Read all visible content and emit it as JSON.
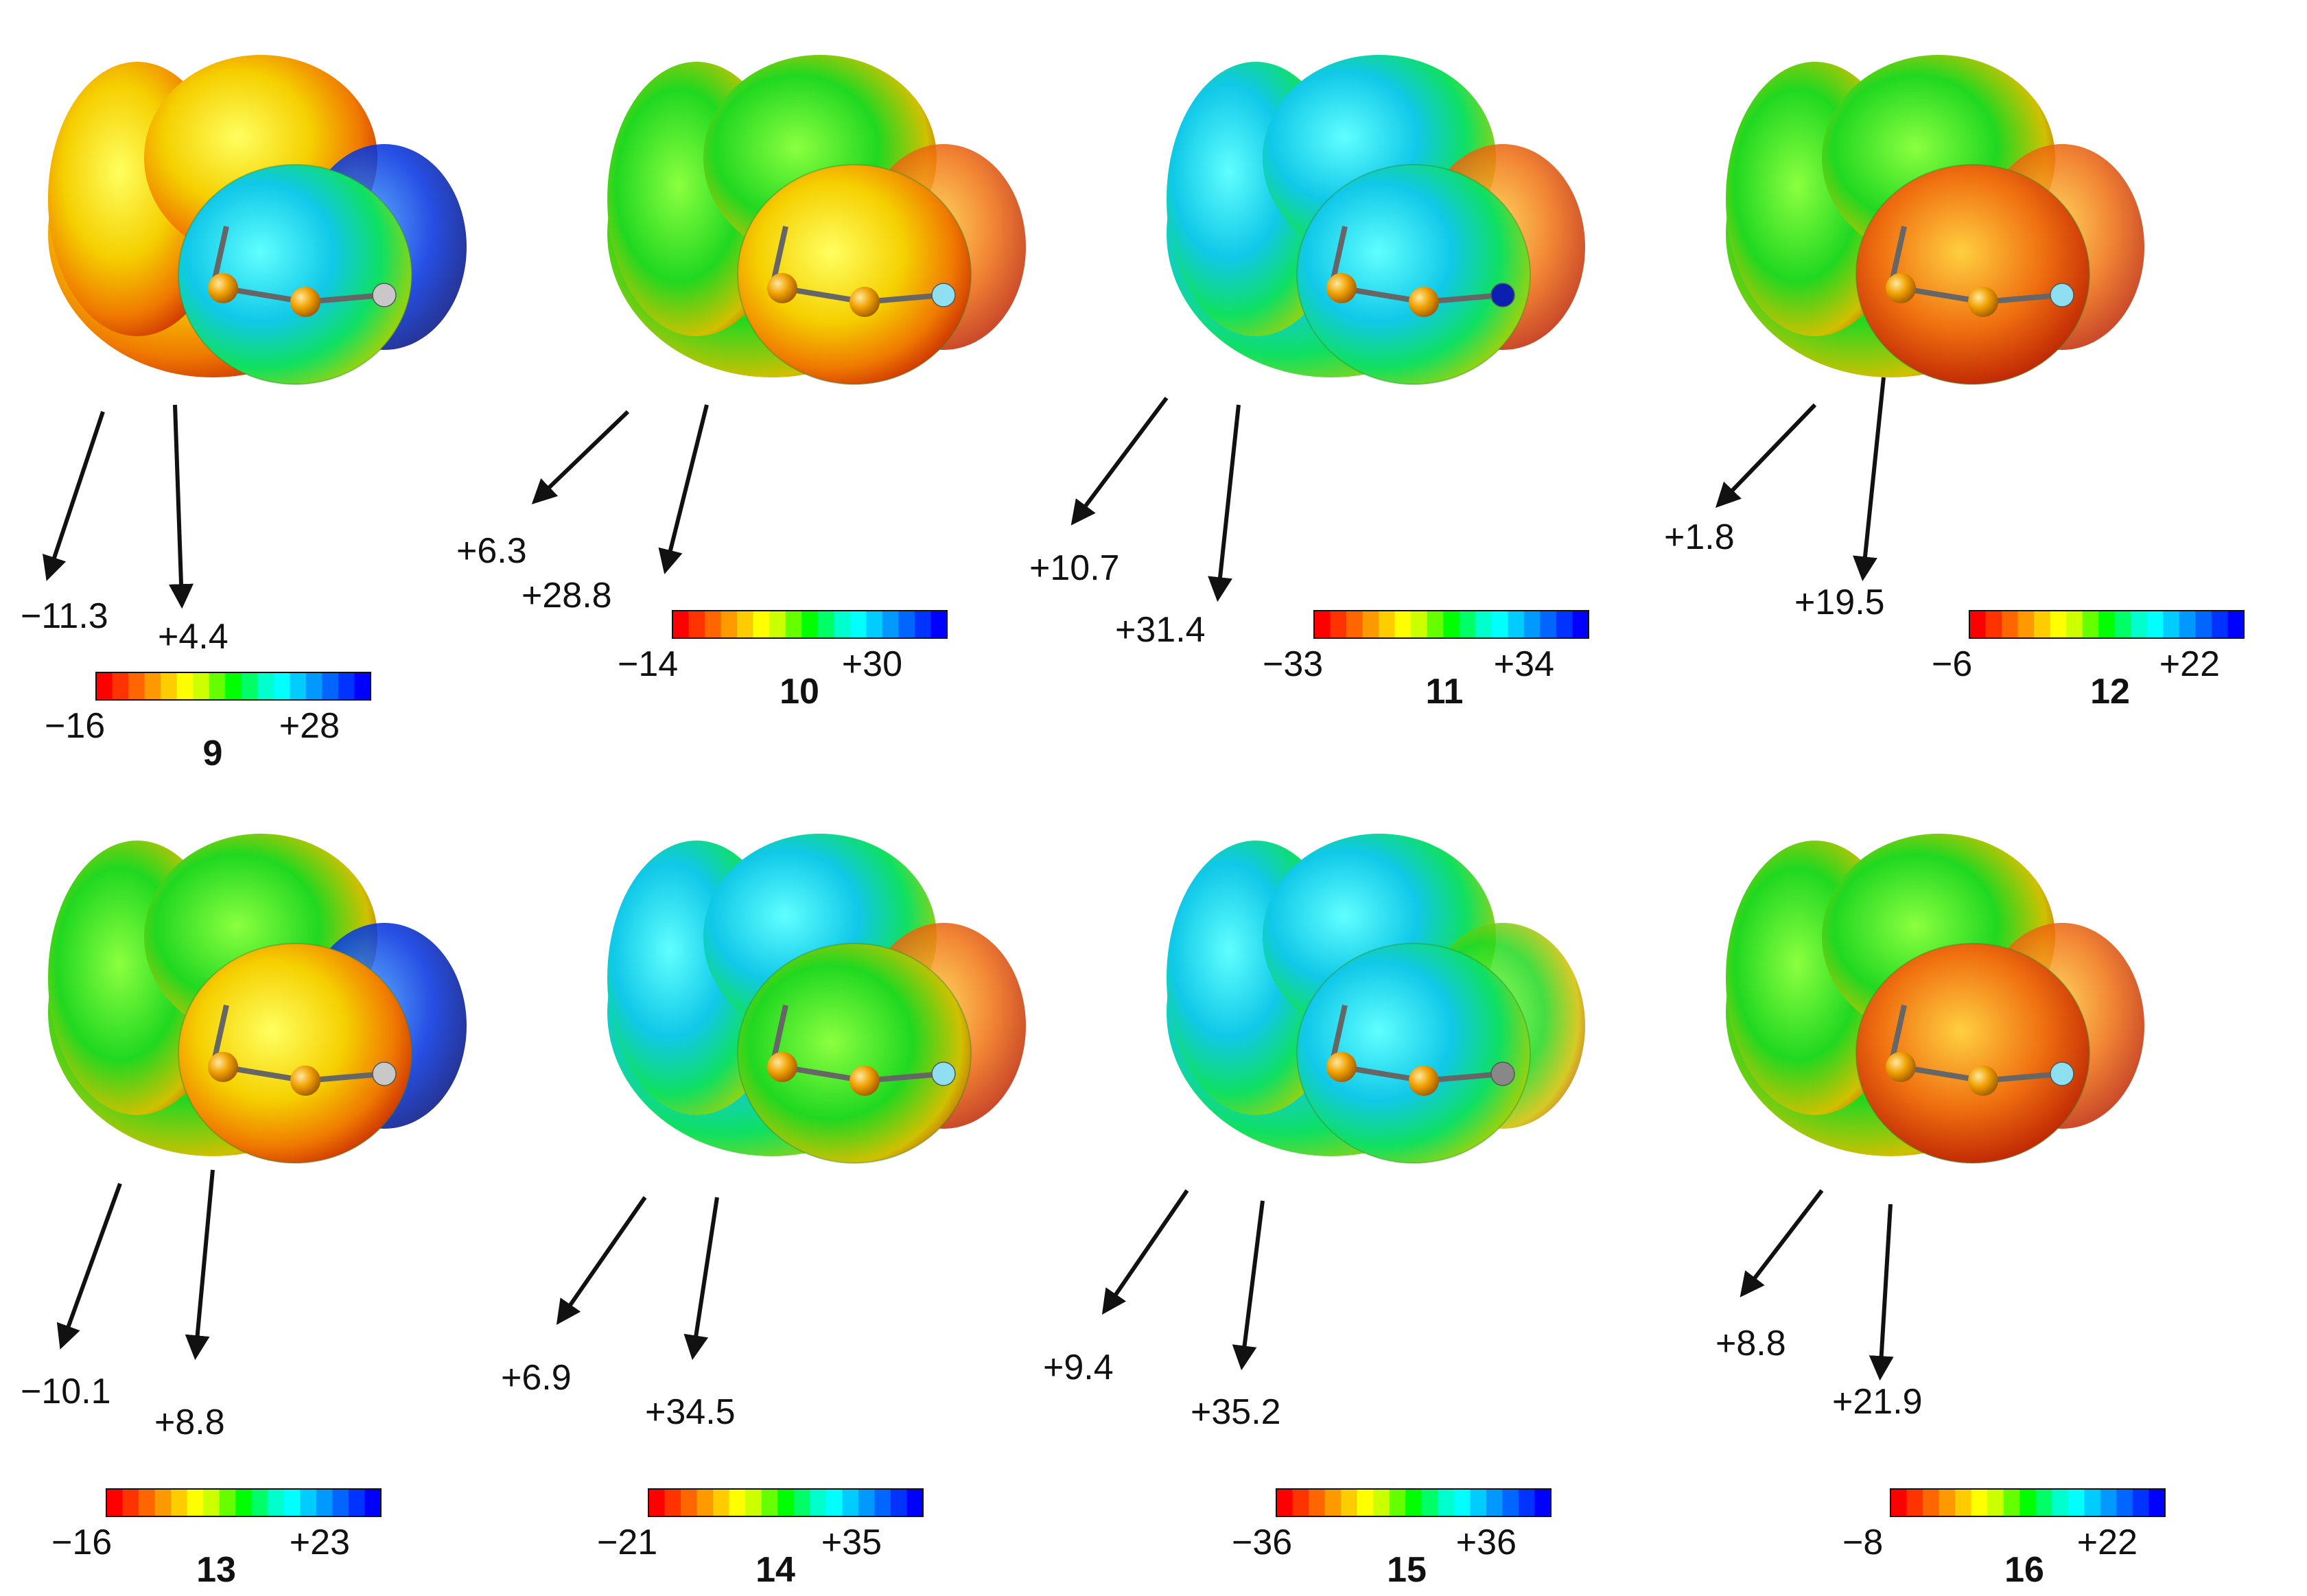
{
  "colorbar_colors": [
    "#ff0000",
    "#ff3300",
    "#ff6600",
    "#ff9900",
    "#ffcc00",
    "#ffff00",
    "#ccff00",
    "#66ff00",
    "#00ff00",
    "#00ff66",
    "#00ffcc",
    "#00ffff",
    "#00ccff",
    "#0099ff",
    "#0066ff",
    "#0033ff",
    "#0000ff"
  ],
  "panels": [
    {
      "id": "9",
      "scale_min": "−16",
      "scale_max": "+28",
      "value_left": "−11.3",
      "value_right": "+4.4",
      "tip_color": "#c8c8c8"
    },
    {
      "id": "10",
      "scale_min": "−14",
      "scale_max": "+30",
      "value_left": "+6.3",
      "value_right": "+28.8",
      "tip_color": "#8ee0f0"
    },
    {
      "id": "11",
      "scale_min": "−33",
      "scale_max": "+34",
      "value_left": "+10.7",
      "value_right": "+31.4",
      "tip_color": "#0b1fb0"
    },
    {
      "id": "12",
      "scale_min": "−6",
      "scale_max": "+22",
      "value_left": "+1.8",
      "value_right": "+19.5",
      "tip_color": "#8ee0f0"
    },
    {
      "id": "13",
      "scale_min": "−16",
      "scale_max": "+23",
      "value_left": "−10.1",
      "value_right": "+8.8",
      "tip_color": "#c8c8c8"
    },
    {
      "id": "14",
      "scale_min": "−21",
      "scale_max": "+35",
      "value_left": "+6.9",
      "value_right": "+34.5",
      "tip_color": "#8ee0f0"
    },
    {
      "id": "15",
      "scale_min": "−36",
      "scale_max": "+36",
      "value_left": "+9.4",
      "value_right": "+35.2",
      "tip_color": "#888888"
    },
    {
      "id": "16",
      "scale_min": "−8",
      "scale_max": "+22",
      "value_left": "+8.8",
      "value_right": "+21.9",
      "tip_color": "#8ee0f0"
    }
  ]
}
